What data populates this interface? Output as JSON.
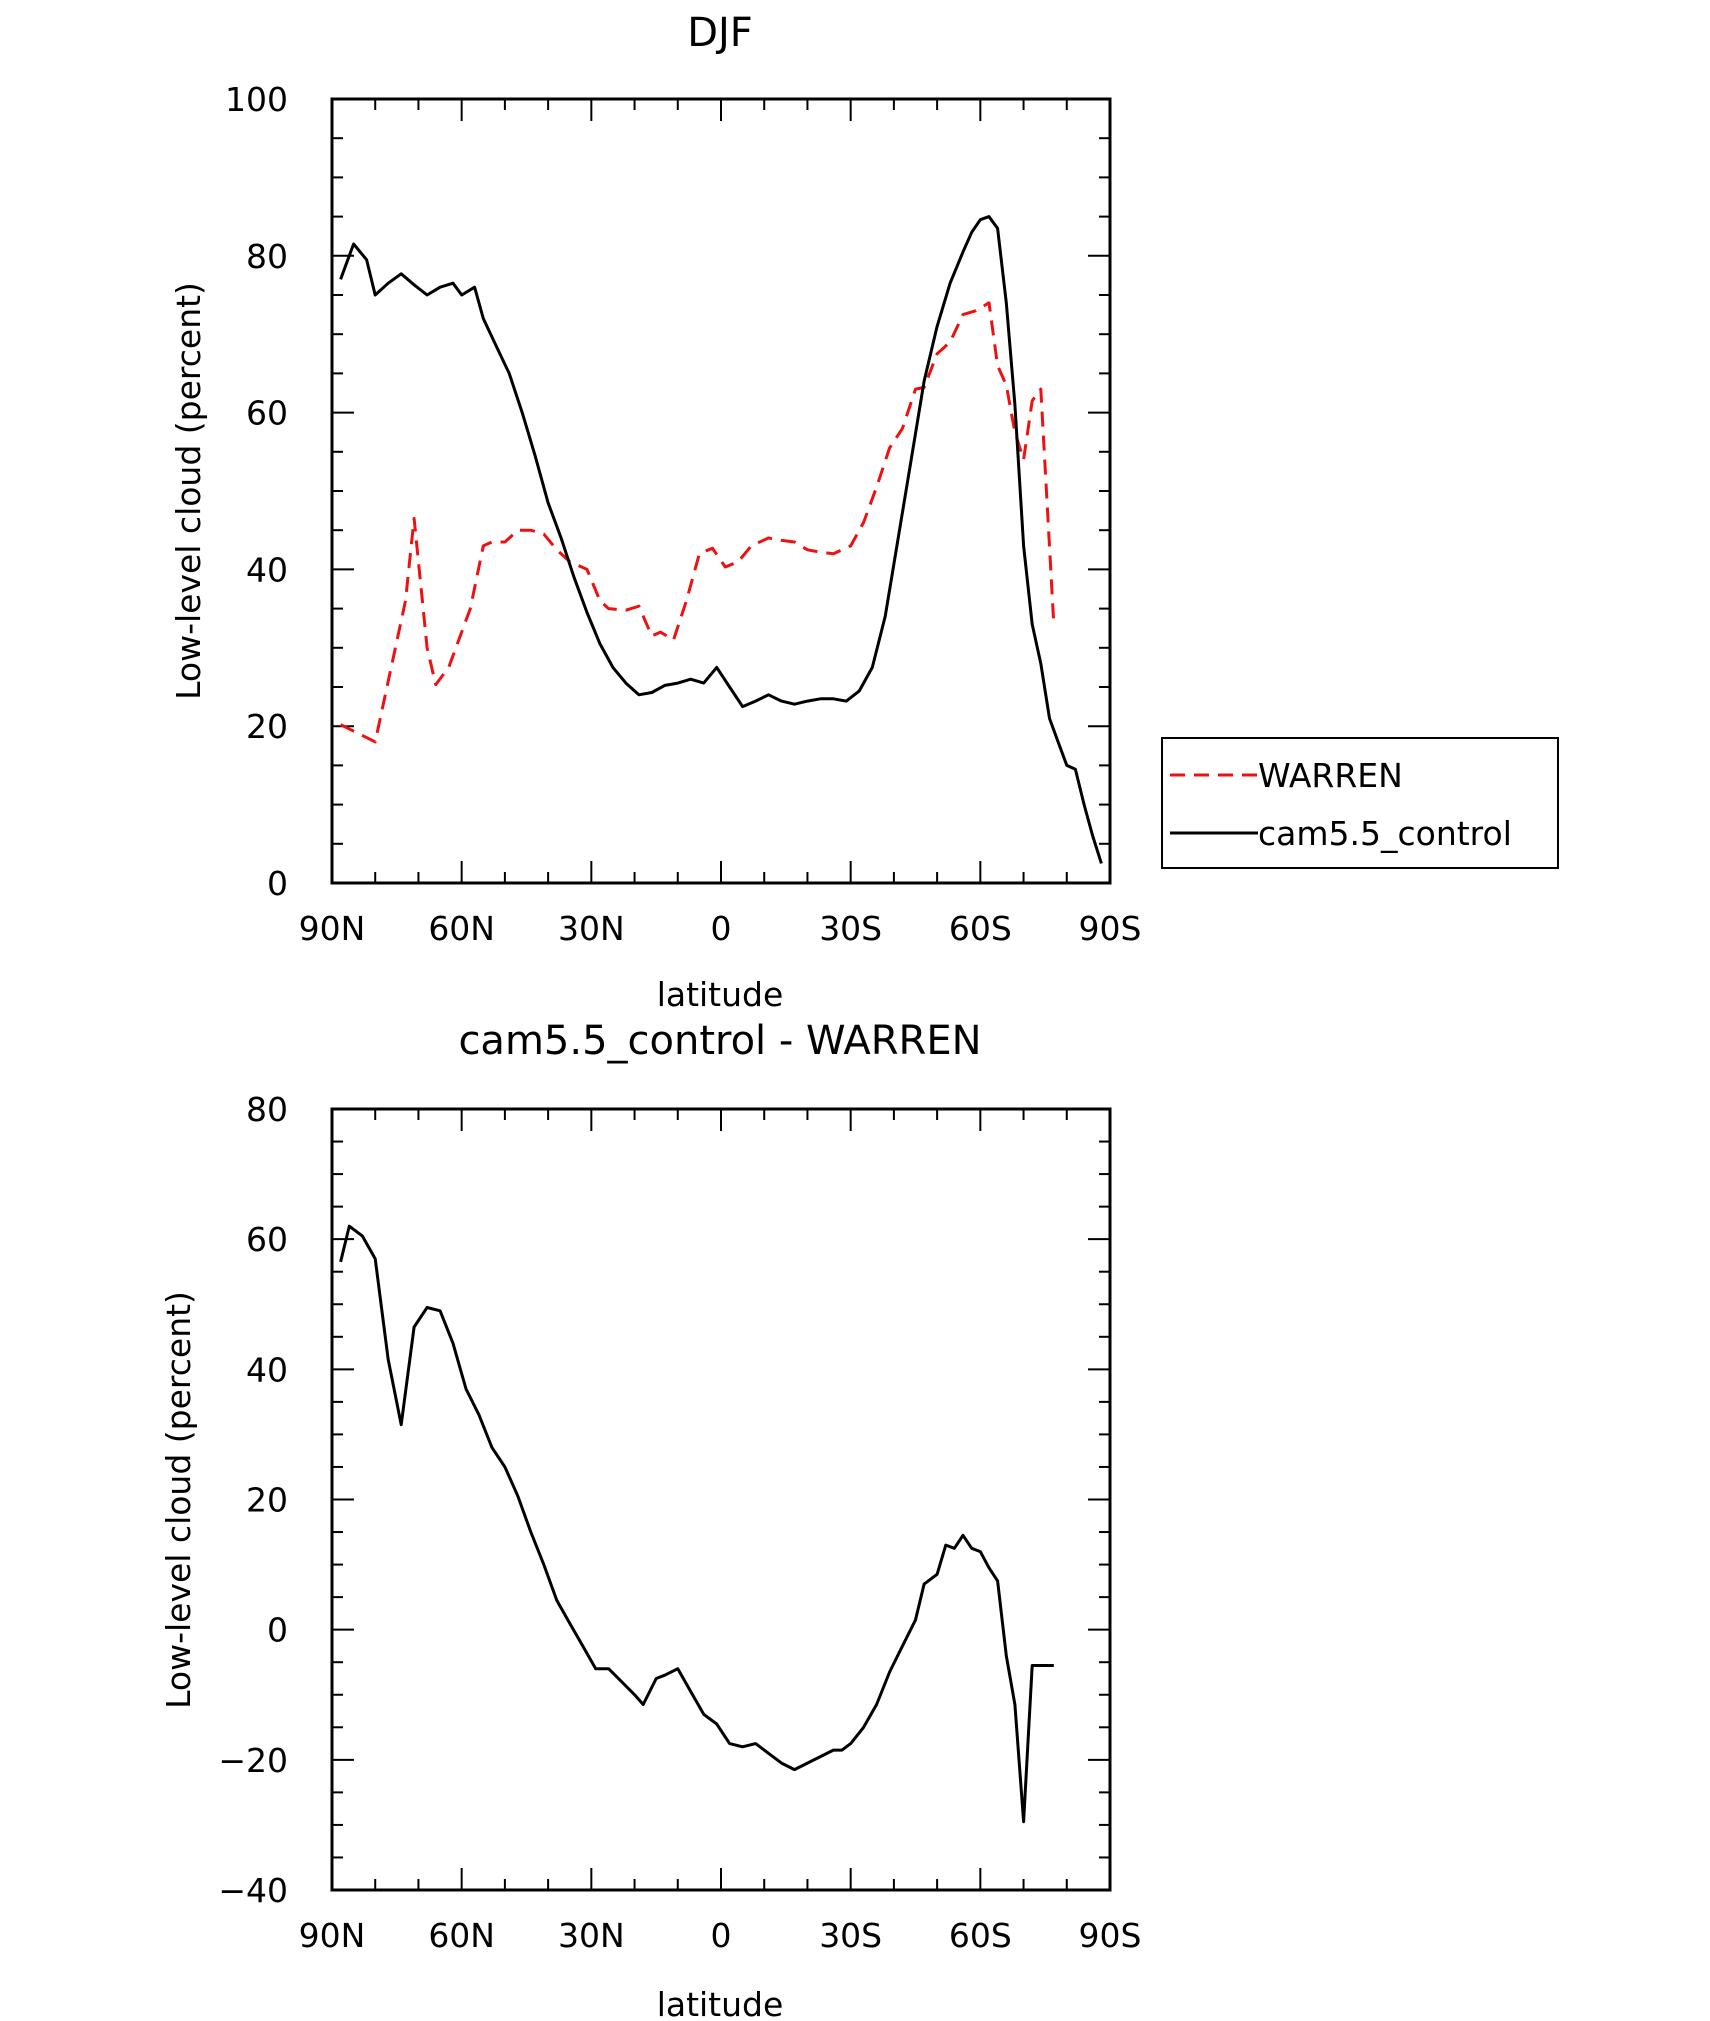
{
  "colors": {
    "warren": "#ee1111",
    "control": "#000000"
  },
  "legend": [
    {
      "name": "WARREN",
      "style": "dashed",
      "color": "#ee1111"
    },
    {
      "name": "cam5.5_control",
      "style": "solid",
      "color": "#000000"
    }
  ],
  "chart_data": [
    {
      "type": "line",
      "title": "DJF",
      "xlabel": "latitude",
      "ylabel": "Low-level cloud (percent)",
      "xlim": [
        90,
        -90
      ],
      "ylim": [
        0,
        100
      ],
      "xticks": [
        90,
        60,
        30,
        0,
        -30,
        -60,
        -90
      ],
      "xtick_labels": [
        "90N",
        "60N",
        "30N",
        "0",
        "30S",
        "60S",
        "90S"
      ],
      "yticks": [
        0,
        20,
        40,
        60,
        80,
        100
      ],
      "ytick_labels": [
        "0",
        "20",
        "40",
        "60",
        "80",
        "100"
      ],
      "legend_position": "right",
      "series": [
        {
          "name": "WARREN",
          "style": "dashed",
          "x": [
            88,
            80,
            73,
            71,
            68,
            66,
            63,
            58,
            55,
            53,
            50,
            47,
            44,
            41,
            38,
            35,
            31,
            28,
            26,
            22,
            19,
            16,
            14,
            11,
            8,
            5,
            2,
            -1,
            -4,
            -7,
            -11,
            -14,
            -17,
            -20,
            -23,
            -26,
            -30,
            -33,
            -36,
            -39,
            -42,
            -45,
            -47,
            -50,
            -53,
            -56,
            -59,
            -62,
            -64,
            -66,
            -68,
            -70,
            -72,
            -74,
            -77
          ],
          "y": [
            20.2,
            18,
            36,
            46.5,
            30,
            25.3,
            27.5,
            35,
            43,
            43.5,
            43.5,
            45,
            45,
            44.5,
            42.5,
            41,
            40,
            36,
            35,
            34.8,
            35.3,
            31.5,
            32,
            31,
            36,
            42,
            42.7,
            40.3,
            41,
            43,
            44,
            43.7,
            43.5,
            42.5,
            42.2,
            42,
            43,
            46,
            50.5,
            55.5,
            58,
            63,
            63.2,
            67.5,
            69,
            72.5,
            73,
            74,
            66,
            63.5,
            57.5,
            54,
            61.5,
            63,
            33
          ]
        },
        {
          "name": "cam5.5_control",
          "style": "solid",
          "x": [
            88,
            85,
            82,
            80,
            77,
            74,
            71,
            68,
            65,
            62,
            60,
            57,
            55,
            52,
            49,
            46,
            43,
            40,
            37,
            34,
            31,
            28,
            25,
            22,
            19,
            16,
            13,
            10,
            7,
            4,
            1,
            -2,
            -5,
            -8,
            -11,
            -14,
            -17,
            -20,
            -23,
            -26,
            -29,
            -32,
            -35,
            -38,
            -41,
            -44,
            -47,
            -50,
            -53,
            -56,
            -58,
            -60,
            -62,
            -64,
            -66,
            -68,
            -70,
            -72,
            -74,
            -76,
            -78,
            -80,
            -82,
            -84,
            -86,
            -88
          ],
          "y": [
            77,
            81.5,
            79.5,
            75,
            76.5,
            77.7,
            76.3,
            75,
            76,
            76.5,
            75,
            76,
            72,
            68.5,
            65,
            60,
            54.5,
            48.5,
            44,
            39,
            34.5,
            30.5,
            27.5,
            25.5,
            24,
            24.3,
            25.2,
            25.5,
            26,
            25.5,
            27.5,
            25,
            22.5,
            23.2,
            24,
            23.2,
            22.8,
            23.2,
            23.5,
            23.5,
            23.2,
            24.5,
            27.5,
            34,
            44,
            54,
            64,
            71,
            76.5,
            80.5,
            83,
            84.6,
            85,
            83.5,
            74,
            61,
            43,
            33,
            28,
            21,
            18,
            15,
            14.5,
            10,
            6,
            2.5
          ]
        }
      ]
    },
    {
      "type": "line",
      "title": "cam5.5_control - WARREN",
      "xlabel": "latitude",
      "ylabel": "Low-level cloud (percent)",
      "xlim": [
        90,
        -90
      ],
      "ylim": [
        -40,
        80
      ],
      "xticks": [
        90,
        60,
        30,
        0,
        -30,
        -60,
        -90
      ],
      "xtick_labels": [
        "90N",
        "60N",
        "30N",
        "0",
        "30S",
        "60S",
        "90S"
      ],
      "yticks": [
        -40,
        -20,
        0,
        20,
        40,
        60,
        80
      ],
      "ytick_labels": [
        "−40",
        "−20",
        "0",
        "20",
        "40",
        "60",
        "80"
      ],
      "series": [
        {
          "name": "cam5.5_control - WARREN",
          "style": "solid",
          "x": [
            88,
            86,
            83,
            80,
            77,
            74,
            71,
            68,
            65,
            62,
            59,
            56,
            53,
            50,
            47,
            44,
            41,
            38,
            35,
            32,
            29,
            26,
            23,
            20,
            18,
            15,
            13,
            10,
            7,
            4,
            1,
            -2,
            -5,
            -8,
            -11,
            -14,
            -17,
            -20,
            -23,
            -26,
            -28,
            -30,
            -33,
            -36,
            -39,
            -42,
            -45,
            -47,
            -50,
            -52,
            -54,
            -56,
            -58,
            -60,
            -62,
            -64,
            -66,
            -68,
            -70,
            -72,
            -74,
            -77
          ],
          "y": [
            56.5,
            62,
            60.5,
            57,
            41.5,
            31.5,
            46.5,
            49.5,
            49,
            44,
            37,
            33,
            28,
            25,
            20.5,
            15,
            10,
            4.5,
            1,
            -2.5,
            -6,
            -6,
            -8,
            -10,
            -11.5,
            -7.5,
            -7,
            -6,
            -9.5,
            -13,
            -14.5,
            -17.5,
            -18,
            -17.5,
            -19,
            -20.5,
            -21.5,
            -20.5,
            -19.5,
            -18.5,
            -18.5,
            -17.5,
            -15,
            -11.5,
            -6.5,
            -2.5,
            1.5,
            7,
            8.5,
            13,
            12.5,
            14.5,
            12.5,
            12,
            9.5,
            7.5,
            -4,
            -11.5,
            -29.5,
            -5.5,
            -5.5,
            -5.5
          ]
        }
      ]
    }
  ]
}
